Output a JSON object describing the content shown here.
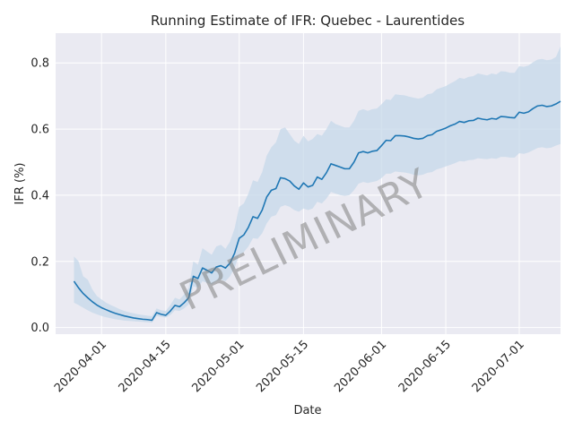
{
  "chart_data": {
    "type": "line",
    "title": "Running Estimate of IFR: Quebec - Laurentides",
    "xlabel": "Date",
    "ylabel": "IFR (%)",
    "watermark": "PRELIMINARY",
    "xlim": [
      "2020-03-22",
      "2020-07-10"
    ],
    "ylim": [
      -0.02,
      0.89
    ],
    "x_ticks": [
      "2020-04-01",
      "2020-04-15",
      "2020-05-01",
      "2020-05-15",
      "2020-06-01",
      "2020-06-15",
      "2020-07-01"
    ],
    "y_ticks": [
      0.0,
      0.2,
      0.4,
      0.6,
      0.8
    ],
    "y_tick_labels": [
      "0.0",
      "0.2",
      "0.4",
      "0.6",
      "0.8"
    ],
    "grid": true,
    "colors": {
      "line": "#1f77b4",
      "band": "#c6d8ea",
      "background": "#eaeaf2",
      "grid": "#ffffff",
      "watermark": "#7f7f7f"
    },
    "series": [
      {
        "points": [
          [
            "2020-03-26",
            0.14
          ],
          [
            "2020-03-27",
            0.12
          ],
          [
            "2020-03-28",
            0.103
          ],
          [
            "2020-03-29",
            0.09
          ],
          [
            "2020-03-30",
            0.078
          ],
          [
            "2020-03-31",
            0.068
          ],
          [
            "2020-04-01",
            0.06
          ],
          [
            "2020-04-02",
            0.054
          ],
          [
            "2020-04-03",
            0.048
          ],
          [
            "2020-04-04",
            0.043
          ],
          [
            "2020-04-05",
            0.039
          ],
          [
            "2020-04-06",
            0.035
          ],
          [
            "2020-04-07",
            0.032
          ],
          [
            "2020-04-08",
            0.029
          ],
          [
            "2020-04-09",
            0.027
          ],
          [
            "2020-04-10",
            0.025
          ],
          [
            "2020-04-11",
            0.024
          ],
          [
            "2020-04-12",
            0.022
          ],
          [
            "2020-04-13",
            0.045
          ],
          [
            "2020-04-14",
            0.04
          ],
          [
            "2020-04-15",
            0.037
          ],
          [
            "2020-04-16",
            0.05
          ],
          [
            "2020-04-17",
            0.067
          ],
          [
            "2020-04-18",
            0.063
          ],
          [
            "2020-04-19",
            0.075
          ],
          [
            "2020-04-20",
            0.09
          ],
          [
            "2020-04-21",
            0.155
          ],
          [
            "2020-04-22",
            0.148
          ],
          [
            "2020-04-23",
            0.18
          ],
          [
            "2020-04-24",
            0.173
          ],
          [
            "2020-04-25",
            0.165
          ],
          [
            "2020-04-26",
            0.183
          ],
          [
            "2020-04-27",
            0.187
          ],
          [
            "2020-04-28",
            0.18
          ],
          [
            "2020-04-29",
            0.195
          ],
          [
            "2020-04-30",
            0.225
          ],
          [
            "2020-05-01",
            0.27
          ],
          [
            "2020-05-02",
            0.28
          ],
          [
            "2020-05-03",
            0.303
          ],
          [
            "2020-05-04",
            0.335
          ],
          [
            "2020-05-05",
            0.33
          ],
          [
            "2020-05-06",
            0.355
          ],
          [
            "2020-05-07",
            0.395
          ],
          [
            "2020-05-08",
            0.415
          ],
          [
            "2020-05-09",
            0.42
          ],
          [
            "2020-05-10",
            0.453
          ],
          [
            "2020-05-11",
            0.45
          ],
          [
            "2020-05-12",
            0.443
          ],
          [
            "2020-05-13",
            0.428
          ],
          [
            "2020-05-14",
            0.418
          ],
          [
            "2020-05-15",
            0.437
          ],
          [
            "2020-05-16",
            0.425
          ],
          [
            "2020-05-17",
            0.43
          ],
          [
            "2020-05-18",
            0.455
          ],
          [
            "2020-05-19",
            0.448
          ],
          [
            "2020-05-20",
            0.468
          ],
          [
            "2020-05-21",
            0.495
          ],
          [
            "2020-05-22",
            0.49
          ],
          [
            "2020-05-23",
            0.485
          ],
          [
            "2020-05-24",
            0.48
          ],
          [
            "2020-05-25",
            0.48
          ],
          [
            "2020-05-26",
            0.5
          ],
          [
            "2020-05-27",
            0.528
          ],
          [
            "2020-05-28",
            0.532
          ],
          [
            "2020-05-29",
            0.528
          ],
          [
            "2020-05-30",
            0.533
          ],
          [
            "2020-05-31",
            0.535
          ],
          [
            "2020-06-01",
            0.55
          ],
          [
            "2020-06-02",
            0.566
          ],
          [
            "2020-06-03",
            0.565
          ],
          [
            "2020-06-04",
            0.58
          ],
          [
            "2020-06-05",
            0.58
          ],
          [
            "2020-06-06",
            0.579
          ],
          [
            "2020-06-07",
            0.576
          ],
          [
            "2020-06-08",
            0.572
          ],
          [
            "2020-06-09",
            0.57
          ],
          [
            "2020-06-10",
            0.572
          ],
          [
            "2020-06-11",
            0.58
          ],
          [
            "2020-06-12",
            0.583
          ],
          [
            "2020-06-13",
            0.593
          ],
          [
            "2020-06-14",
            0.598
          ],
          [
            "2020-06-15",
            0.603
          ],
          [
            "2020-06-16",
            0.61
          ],
          [
            "2020-06-17",
            0.615
          ],
          [
            "2020-06-18",
            0.623
          ],
          [
            "2020-06-19",
            0.62
          ],
          [
            "2020-06-20",
            0.625
          ],
          [
            "2020-06-21",
            0.626
          ],
          [
            "2020-06-22",
            0.633
          ],
          [
            "2020-06-23",
            0.63
          ],
          [
            "2020-06-24",
            0.628
          ],
          [
            "2020-06-25",
            0.632
          ],
          [
            "2020-06-26",
            0.63
          ],
          [
            "2020-06-27",
            0.638
          ],
          [
            "2020-06-28",
            0.637
          ],
          [
            "2020-06-29",
            0.635
          ],
          [
            "2020-06-30",
            0.634
          ],
          [
            "2020-07-01",
            0.651
          ],
          [
            "2020-07-02",
            0.648
          ],
          [
            "2020-07-03",
            0.652
          ],
          [
            "2020-07-04",
            0.662
          ],
          [
            "2020-07-05",
            0.67
          ],
          [
            "2020-07-06",
            0.672
          ],
          [
            "2020-07-07",
            0.668
          ],
          [
            "2020-07-08",
            0.67
          ],
          [
            "2020-07-09",
            0.676
          ],
          [
            "2020-07-10",
            0.684
          ]
        ],
        "band_lower": [
          0.075,
          0.068,
          0.06,
          0.052,
          0.045,
          0.04,
          0.035,
          0.031,
          0.028,
          0.025,
          0.023,
          0.021,
          0.02,
          0.019,
          0.018,
          0.017,
          0.016,
          0.015,
          0.035,
          0.032,
          0.03,
          0.038,
          0.052,
          0.05,
          0.058,
          0.07,
          0.125,
          0.12,
          0.14,
          0.135,
          0.13,
          0.14,
          0.145,
          0.14,
          0.155,
          0.18,
          0.22,
          0.228,
          0.245,
          0.27,
          0.268,
          0.285,
          0.315,
          0.335,
          0.34,
          0.365,
          0.37,
          0.365,
          0.355,
          0.35,
          0.36,
          0.355,
          0.36,
          0.38,
          0.375,
          0.39,
          0.41,
          0.405,
          0.4,
          0.398,
          0.4,
          0.415,
          0.435,
          0.44,
          0.437,
          0.44,
          0.443,
          0.452,
          0.465,
          0.465,
          0.472,
          0.47,
          0.469,
          0.466,
          0.462,
          0.46,
          0.462,
          0.468,
          0.47,
          0.478,
          0.482,
          0.487,
          0.492,
          0.497,
          0.503,
          0.502,
          0.506,
          0.507,
          0.512,
          0.51,
          0.509,
          0.512,
          0.51,
          0.516,
          0.516,
          0.514,
          0.514,
          0.527,
          0.525,
          0.529,
          0.536,
          0.543,
          0.545,
          0.542,
          0.544,
          0.55,
          0.555
        ],
        "band_upper": [
          0.215,
          0.2,
          0.155,
          0.145,
          0.115,
          0.095,
          0.085,
          0.075,
          0.068,
          0.062,
          0.055,
          0.05,
          0.046,
          0.043,
          0.04,
          0.038,
          0.036,
          0.034,
          0.058,
          0.052,
          0.05,
          0.068,
          0.09,
          0.085,
          0.1,
          0.12,
          0.2,
          0.19,
          0.24,
          0.23,
          0.22,
          0.245,
          0.25,
          0.238,
          0.26,
          0.3,
          0.365,
          0.375,
          0.405,
          0.445,
          0.44,
          0.47,
          0.52,
          0.545,
          0.56,
          0.6,
          0.605,
          0.585,
          0.565,
          0.555,
          0.58,
          0.563,
          0.57,
          0.585,
          0.58,
          0.6,
          0.625,
          0.615,
          0.61,
          0.605,
          0.605,
          0.625,
          0.655,
          0.66,
          0.655,
          0.66,
          0.662,
          0.675,
          0.69,
          0.688,
          0.705,
          0.703,
          0.702,
          0.698,
          0.695,
          0.692,
          0.695,
          0.705,
          0.708,
          0.72,
          0.725,
          0.73,
          0.738,
          0.745,
          0.755,
          0.752,
          0.758,
          0.76,
          0.768,
          0.765,
          0.762,
          0.768,
          0.765,
          0.775,
          0.774,
          0.77,
          0.77,
          0.79,
          0.788,
          0.792,
          0.802,
          0.81,
          0.812,
          0.808,
          0.81,
          0.818,
          0.85
        ]
      }
    ]
  }
}
